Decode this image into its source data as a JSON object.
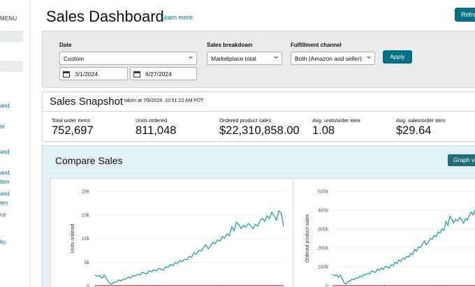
{
  "sidebar": {
    "menu_label": "MENU",
    "links": [
      "and",
      "te",
      "and",
      "and",
      "tem",
      "and",
      "em",
      "ce",
      "by"
    ]
  },
  "header": {
    "title": "Sales Dashboard",
    "learn_more": "Learn more",
    "refresh_label": "Refresh"
  },
  "filters": {
    "date_label": "Date",
    "date_range_value": "Custom",
    "start_date": "3/1/2024",
    "end_date": "6/27/2024",
    "breakdown_label": "Sales breakdown",
    "breakdown_value": "Marketplace total",
    "channel_label": "Fulfillment channel",
    "channel_value": "Both (Amazon and seller)",
    "apply_label": "Apply"
  },
  "snapshot": {
    "title": "Sales Snapshot",
    "taken_at": "taken at 7/9/2024, 10:51:23 AM PDT",
    "metrics": [
      {
        "label": "Total order items",
        "value": "752,697"
      },
      {
        "label": "Units ordered",
        "value": "811,048"
      },
      {
        "label": "Ordered product sales",
        "value": "$22,310,858.00"
      },
      {
        "label": "Avg. units/order item",
        "value": "1.08"
      },
      {
        "label": "Avg. sales/order item",
        "value": "$29.64"
      }
    ]
  },
  "compare": {
    "title": "Compare Sales",
    "graph_view_label": "Graph view"
  },
  "colors": {
    "accent": "#007185",
    "series_current": "#1fa3a8",
    "series_baseline": "#e02b2b"
  },
  "chart_data": [
    {
      "type": "line",
      "ylabel": "Units ordered",
      "yticks": [
        "20k",
        "15k",
        "10k",
        "5k",
        "0"
      ],
      "ylim": [
        0,
        20000
      ],
      "series": [
        {
          "values": [
            2200,
            2000,
            2100,
            1600,
            2200,
            1300,
            600,
            300,
            700,
            800,
            1200,
            1000,
            1400,
            1300,
            1800,
            1600,
            2100,
            2000,
            2400,
            2200,
            2800,
            2600,
            2500,
            3200,
            2900,
            3400,
            3100,
            3700,
            3500,
            3300,
            4000,
            3800,
            4500,
            4200,
            4900,
            4700,
            5300,
            5100,
            5600,
            5500,
            6200,
            6000,
            7000,
            6600,
            7500,
            7300,
            8000,
            8700,
            7800,
            8400,
            9200,
            8900,
            9700,
            9400,
            10400,
            10100,
            11000,
            10600,
            12500,
            11600,
            13500,
            12900,
            12100,
            12800,
            12400,
            13200,
            12700,
            12000,
            13000,
            12600,
            13700,
            14300,
            13600,
            14800,
            14200,
            15600,
            14800,
            13900,
            15900,
            15400,
            12600
          ]
        },
        {
          "values": [
            0,
            0
          ]
        }
      ]
    },
    {
      "type": "line",
      "ylabel": "Ordered product sales",
      "yticks": [
        "500k",
        "400k",
        "300k",
        "200k",
        "100k",
        "0"
      ],
      "ylim": [
        0,
        500000
      ],
      "series": [
        {
          "values": [
            60000,
            52000,
            58000,
            43000,
            56000,
            36000,
            14000,
            9000,
            21000,
            24000,
            35000,
            31000,
            41000,
            38000,
            51000,
            46000,
            60000,
            57000,
            66000,
            62000,
            78000,
            73000,
            70000,
            88000,
            81000,
            94000,
            86000,
            102000,
            98000,
            92000,
            110000,
            105000,
            124000,
            117000,
            135000,
            130000,
            146000,
            140000,
            155000,
            152000,
            170000,
            165000,
            192000,
            182000,
            206000,
            201000,
            220000,
            238000,
            216000,
            231000,
            252000,
            245000,
            266000,
            259000,
            285000,
            278000,
            302000,
            292000,
            342000,
            318000,
            370000,
            354000,
            332000,
            352000,
            341000,
            362000,
            349000,
            330000,
            357000,
            346000,
            376000,
            392000,
            373000,
            405000,
            390000,
            428000,
            405000,
            380000,
            436000,
            422000,
            346000
          ]
        },
        {
          "values": [
            0,
            0
          ]
        }
      ]
    }
  ]
}
